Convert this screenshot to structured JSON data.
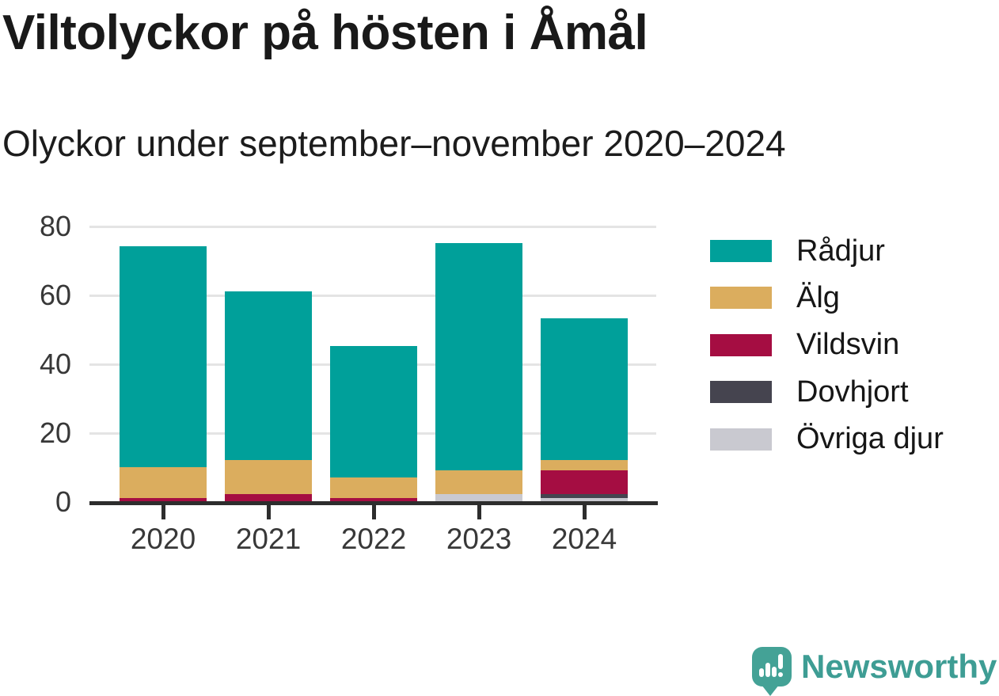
{
  "chart_data": {
    "type": "bar",
    "stacked": true,
    "title": "Viltolyckor på hösten i Åmål",
    "subtitle": "Olyckor under september–november 2020–2024",
    "categories": [
      "2020",
      "2021",
      "2022",
      "2023",
      "2024"
    ],
    "series": [
      {
        "name": "Rådjur",
        "color": "#00a09a",
        "values": [
          64,
          49,
          38,
          66,
          41
        ]
      },
      {
        "name": "Älg",
        "color": "#dbad5e",
        "values": [
          9,
          10,
          6,
          7,
          3
        ]
      },
      {
        "name": "Vildsvin",
        "color": "#a50d42",
        "values": [
          1,
          2,
          1,
          0,
          7
        ]
      },
      {
        "name": "Dovhjort",
        "color": "#45444f",
        "values": [
          0,
          0,
          0,
          0,
          1
        ]
      },
      {
        "name": "Övriga djur",
        "color": "#c9c9d0",
        "values": [
          0,
          0,
          0,
          2,
          1
        ]
      }
    ],
    "stack_order_bottom_to_top": [
      "Övriga djur",
      "Dovhjort",
      "Vildsvin",
      "Älg",
      "Rådjur"
    ],
    "totals": [
      74,
      61,
      45,
      75,
      53
    ],
    "xlabel": "",
    "ylabel": "",
    "ylim": [
      0,
      80
    ],
    "yticks": [
      0,
      20,
      40,
      60,
      80
    ],
    "grid": true,
    "legend_position": "right",
    "axis_color": "#2d2d2d",
    "gridline_color": "#e4e4e4"
  },
  "branding": {
    "logo_text": "Newsworthy",
    "logo_text_color": "#3e9d94",
    "logo_icon_color": "#44a296",
    "logo_icon": "bar-chart-exclamation-speech-bubble"
  }
}
